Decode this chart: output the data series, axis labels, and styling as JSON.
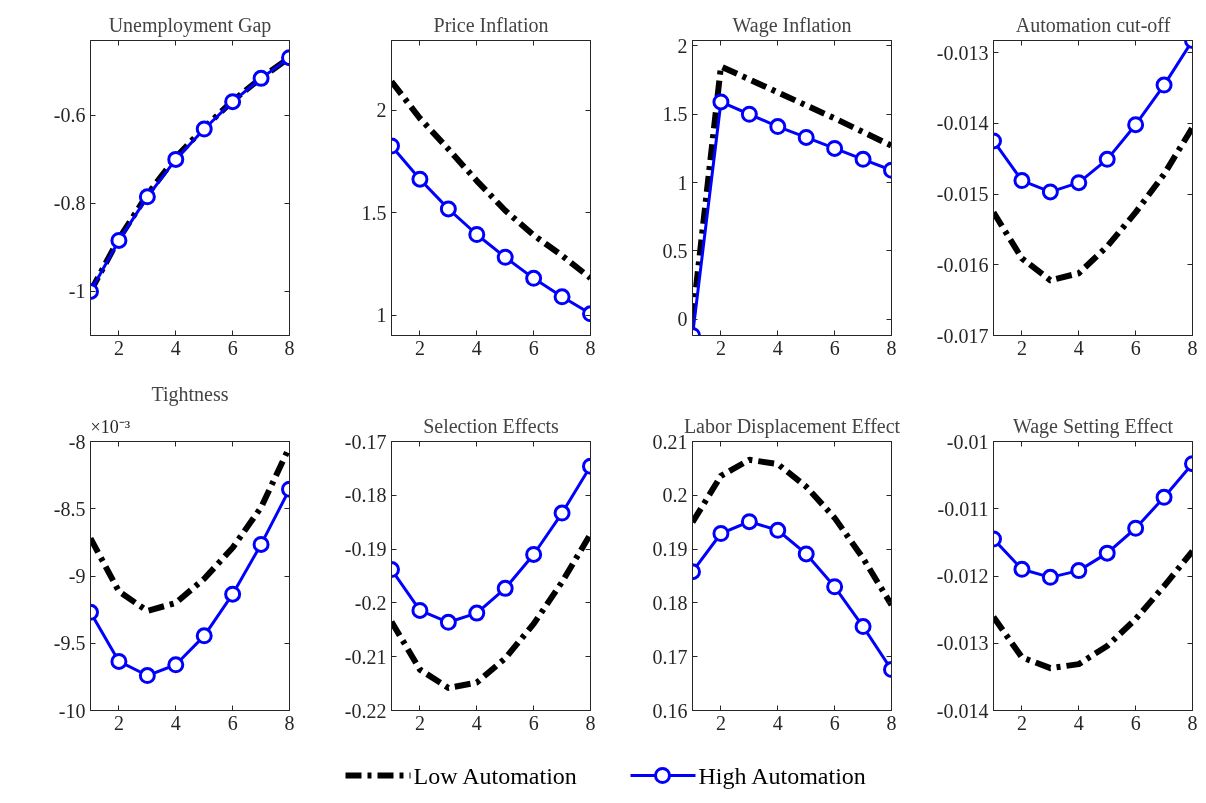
{
  "chart_data": [
    {
      "type": "line",
      "title": "Unemployment Gap",
      "x": [
        1,
        2,
        3,
        4,
        5,
        6,
        7,
        8
      ],
      "xlim": [
        1,
        8
      ],
      "xticks": [
        2,
        4,
        6,
        8
      ],
      "ylim": [
        -1.1,
        -0.43
      ],
      "yticks": [
        -1,
        -0.8,
        -0.6
      ],
      "grid": false,
      "legend": "bottom",
      "series": [
        {
          "name": "Low Automation",
          "color": "#000000",
          "line_style": "dashed",
          "marker": "none",
          "values": [
            -1.0,
            -0.88,
            -0.78,
            -0.695,
            -0.628,
            -0.567,
            -0.515,
            -0.469
          ]
        },
        {
          "name": "High Automation",
          "color": "#0000ff",
          "line_style": "solid",
          "marker": "circle",
          "values": [
            -1.0,
            -0.884,
            -0.785,
            -0.7,
            -0.631,
            -0.569,
            -0.516,
            -0.469
          ]
        }
      ]
    },
    {
      "type": "line",
      "title": "Price Inflation",
      "x": [
        1,
        2,
        3,
        4,
        5,
        6,
        7,
        8
      ],
      "xlim": [
        1,
        8
      ],
      "xticks": [
        2,
        4,
        6,
        8
      ],
      "ylim": [
        0.9,
        2.34
      ],
      "yticks": [
        1,
        1.5,
        2
      ],
      "grid": false,
      "series": [
        {
          "color": "#000000",
          "line_style": "dashed",
          "marker": "none",
          "values": [
            2.14,
            1.96,
            1.81,
            1.655,
            1.51,
            1.39,
            1.29,
            1.18
          ]
        },
        {
          "color": "#0000ff",
          "line_style": "solid",
          "marker": "circle",
          "values": [
            1.825,
            1.663,
            1.518,
            1.393,
            1.282,
            1.179,
            1.089,
            1.006
          ]
        }
      ]
    },
    {
      "type": "line",
      "title": "Wage Inflation",
      "x": [
        1,
        2,
        3,
        4,
        5,
        6,
        7,
        8
      ],
      "xlim": [
        1,
        8
      ],
      "xticks": [
        2,
        4,
        6,
        8
      ],
      "ylim": [
        -0.12,
        2.04
      ],
      "yticks": [
        0,
        0.5,
        1,
        1.5,
        2
      ],
      "grid": false,
      "series": [
        {
          "color": "#000000",
          "line_style": "dashed",
          "marker": "none",
          "values": [
            0.0,
            1.85,
            1.755,
            1.66,
            1.565,
            1.47,
            1.37,
            1.27
          ]
        },
        {
          "color": "#0000ff",
          "line_style": "solid",
          "marker": "circle",
          "values": [
            -0.12,
            1.59,
            1.5,
            1.41,
            1.33,
            1.25,
            1.17,
            1.09
          ]
        }
      ]
    },
    {
      "type": "line",
      "title": "Automation cut-off",
      "x": [
        1,
        2,
        3,
        4,
        5,
        6,
        7,
        8
      ],
      "xlim": [
        1,
        8
      ],
      "xticks": [
        2,
        4,
        6,
        8
      ],
      "ylim": [
        -0.017,
        -0.01283
      ],
      "yticks": [
        -0.017,
        -0.016,
        -0.015,
        -0.014,
        -0.013
      ],
      "grid": false,
      "series": [
        {
          "color": "#000000",
          "line_style": "dashed",
          "marker": "none",
          "values": [
            -0.01526,
            -0.01591,
            -0.01622,
            -0.01612,
            -0.01574,
            -0.01526,
            -0.01472,
            -0.01406
          ]
        },
        {
          "color": "#0000ff",
          "line_style": "solid",
          "marker": "circle",
          "values": [
            -0.01425,
            -0.01481,
            -0.01497,
            -0.01484,
            -0.01451,
            -0.01402,
            -0.01346,
            -0.01283
          ]
        }
      ]
    },
    {
      "type": "line",
      "title": "Tightness",
      "annotations": [
        "×10⁻³"
      ],
      "x": [
        1,
        2,
        3,
        4,
        5,
        6,
        7,
        8
      ],
      "xlim": [
        1,
        8
      ],
      "xticks": [
        2,
        4,
        6,
        8
      ],
      "ylim": [
        -10,
        -8
      ],
      "yticks": [
        -10,
        -9.5,
        -9,
        -8.5,
        -8
      ],
      "grid": false,
      "series": [
        {
          "color": "#000000",
          "line_style": "dashed",
          "marker": "none",
          "values": [
            -8.72,
            -9.115,
            -9.26,
            -9.2,
            -9.02,
            -8.79,
            -8.49,
            -8.04
          ]
        },
        {
          "color": "#0000ff",
          "line_style": "solid",
          "marker": "circle",
          "values": [
            -9.27,
            -9.635,
            -9.74,
            -9.66,
            -9.445,
            -9.135,
            -8.765,
            -8.355
          ]
        }
      ]
    },
    {
      "type": "line",
      "title": "Selection Effects",
      "x": [
        1,
        2,
        3,
        4,
        5,
        6,
        7,
        8
      ],
      "xlim": [
        1,
        8
      ],
      "xticks": [
        2,
        4,
        6,
        8
      ],
      "ylim": [
        -0.22,
        -0.17
      ],
      "yticks": [
        -0.22,
        -0.21,
        -0.2,
        -0.19,
        -0.18,
        -0.17
      ],
      "grid": false,
      "series": [
        {
          "color": "#000000",
          "line_style": "dashed",
          "marker": "none",
          "values": [
            -0.2035,
            -0.2124,
            -0.2158,
            -0.2148,
            -0.2103,
            -0.2039,
            -0.1961,
            -0.1872
          ]
        },
        {
          "color": "#0000ff",
          "line_style": "solid",
          "marker": "circle",
          "values": [
            -0.1938,
            -0.2014,
            -0.2036,
            -0.2019,
            -0.1973,
            -0.191,
            -0.1833,
            -0.1746
          ]
        }
      ]
    },
    {
      "type": "line",
      "title": "Labor Displacement Effect",
      "x": [
        1,
        2,
        3,
        4,
        5,
        6,
        7,
        8
      ],
      "xlim": [
        1,
        8
      ],
      "xticks": [
        2,
        4,
        6,
        8
      ],
      "ylim": [
        0.16,
        0.21
      ],
      "yticks": [
        0.16,
        0.17,
        0.18,
        0.19,
        0.2,
        0.21
      ],
      "grid": false,
      "series": [
        {
          "color": "#000000",
          "line_style": "dashed",
          "marker": "none",
          "values": [
            0.195,
            0.2036,
            0.2066,
            0.2058,
            0.2016,
            0.1958,
            0.1883,
            0.1796
          ]
        },
        {
          "color": "#0000ff",
          "line_style": "solid",
          "marker": "circle",
          "values": [
            0.1858,
            0.1929,
            0.1951,
            0.1935,
            0.1891,
            0.183,
            0.1756,
            0.1676
          ]
        }
      ]
    },
    {
      "type": "line",
      "title": "Wage Setting Effect",
      "x": [
        1,
        2,
        3,
        4,
        5,
        6,
        7,
        8
      ],
      "xlim": [
        1,
        8
      ],
      "xticks": [
        2,
        4,
        6,
        8
      ],
      "ylim": [
        -0.014,
        -0.01
      ],
      "yticks": [
        -0.014,
        -0.013,
        -0.012,
        -0.011,
        -0.01
      ],
      "grid": false,
      "series": [
        {
          "color": "#000000",
          "line_style": "dashed",
          "marker": "none",
          "values": [
            -0.01261,
            -0.01321,
            -0.01337,
            -0.01331,
            -0.01304,
            -0.01264,
            -0.01215,
            -0.01163
          ]
        },
        {
          "color": "#0000ff",
          "line_style": "solid",
          "marker": "circle",
          "values": [
            -0.01145,
            -0.0119,
            -0.01202,
            -0.01192,
            -0.01166,
            -0.01129,
            -0.01083,
            -0.01033
          ]
        }
      ]
    }
  ]
}
